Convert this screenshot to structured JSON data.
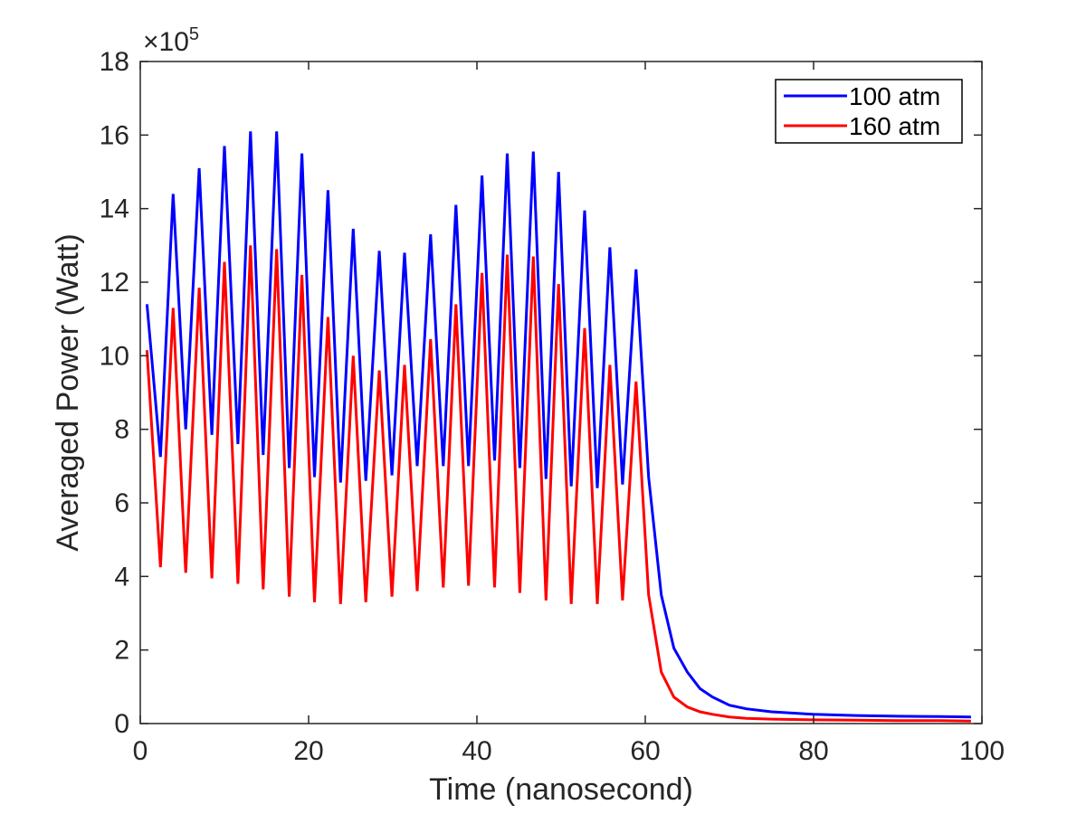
{
  "chart_data": {
    "type": "line",
    "title": "",
    "xlabel": "Time (nanosecond)",
    "ylabel": "Averaged Power (Watt)",
    "xlim": [
      0,
      100
    ],
    "ylim": [
      0,
      18
    ],
    "xticks": [
      0,
      20,
      40,
      60,
      80,
      100
    ],
    "xtick_labels": [
      "0",
      "20",
      "40",
      "60",
      "80",
      "100"
    ],
    "yticks": [
      0,
      2,
      4,
      6,
      8,
      10,
      12,
      14,
      16,
      18
    ],
    "ytick_labels": [
      "0",
      "2",
      "4",
      "6",
      "8",
      "10",
      "12",
      "14",
      "16",
      "18"
    ],
    "y_exponent": {
      "prefix": "×10",
      "power": "5"
    },
    "grid": false,
    "legend_position": "top-right",
    "series": [
      {
        "name": "100 atm",
        "color": "#0000ff",
        "x": [
          0.8,
          2.4,
          3.9,
          5.4,
          7.0,
          8.5,
          10.0,
          11.6,
          13.1,
          14.6,
          16.2,
          17.7,
          19.2,
          20.7,
          22.3,
          23.8,
          25.3,
          26.8,
          28.4,
          29.9,
          31.4,
          32.9,
          34.5,
          36.0,
          37.5,
          39.0,
          40.6,
          42.1,
          43.6,
          45.1,
          46.7,
          48.2,
          49.7,
          51.2,
          52.8,
          54.3,
          55.8,
          57.3,
          58.9,
          60.4,
          61.9,
          63.4,
          65.0,
          66.5,
          68.0,
          70.0,
          72.0,
          75.0,
          80.0,
          85.0,
          90.0,
          95.0,
          98.7
        ],
        "y": [
          11.4,
          7.25,
          14.4,
          8.0,
          15.1,
          7.85,
          15.7,
          7.6,
          16.1,
          7.3,
          16.1,
          6.95,
          15.5,
          6.7,
          14.5,
          6.55,
          13.45,
          6.6,
          12.85,
          6.75,
          12.8,
          7.0,
          13.3,
          7.0,
          14.1,
          7.0,
          14.9,
          7.15,
          15.5,
          6.95,
          15.55,
          6.65,
          15.0,
          6.45,
          13.95,
          6.4,
          12.95,
          6.5,
          12.35,
          6.7,
          3.5,
          2.05,
          1.4,
          0.95,
          0.72,
          0.5,
          0.4,
          0.32,
          0.25,
          0.22,
          0.2,
          0.19,
          0.18
        ]
      },
      {
        "name": "160 atm",
        "color": "#ff0000",
        "x": [
          0.8,
          2.4,
          3.9,
          5.4,
          7.0,
          8.5,
          10.0,
          11.6,
          13.1,
          14.6,
          16.2,
          17.7,
          19.2,
          20.7,
          22.3,
          23.8,
          25.3,
          26.8,
          28.4,
          29.9,
          31.4,
          32.9,
          34.5,
          36.0,
          37.5,
          39.0,
          40.6,
          42.1,
          43.6,
          45.1,
          46.7,
          48.2,
          49.7,
          51.2,
          52.8,
          54.3,
          55.8,
          57.3,
          58.9,
          60.4,
          61.9,
          63.4,
          65.0,
          66.5,
          68.0,
          70.0,
          72.0,
          75.0,
          80.0,
          85.0,
          90.0,
          95.0,
          98.7
        ],
        "y": [
          10.15,
          4.25,
          11.3,
          4.1,
          11.85,
          3.95,
          12.55,
          3.8,
          13.0,
          3.65,
          12.9,
          3.45,
          12.2,
          3.3,
          11.05,
          3.25,
          10.0,
          3.3,
          9.6,
          3.45,
          9.75,
          3.6,
          10.45,
          3.7,
          11.4,
          3.75,
          12.25,
          3.7,
          12.75,
          3.55,
          12.7,
          3.35,
          11.95,
          3.25,
          10.75,
          3.25,
          9.75,
          3.35,
          9.3,
          3.5,
          1.4,
          0.72,
          0.45,
          0.32,
          0.25,
          0.18,
          0.14,
          0.12,
          0.1,
          0.09,
          0.08,
          0.08,
          0.07
        ]
      }
    ]
  }
}
